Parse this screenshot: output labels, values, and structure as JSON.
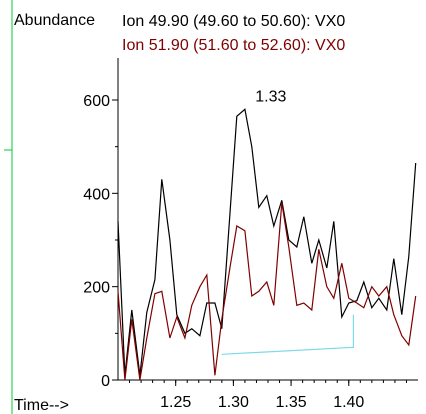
{
  "chart_data": {
    "type": "line",
    "ylabel": "Abundance",
    "xlabel": "Time-->",
    "xlim": [
      1.2,
      1.46
    ],
    "ylim": [
      0,
      690
    ],
    "xticks": [
      1.25,
      1.3,
      1.35,
      1.4
    ],
    "xtick_labels": [
      "1.25",
      "1.30",
      "1.35",
      "1.40"
    ],
    "yticks": [
      0,
      200,
      400,
      600
    ],
    "ytick_labels": [
      "0",
      "200",
      "400",
      "600"
    ],
    "grid": false,
    "legend": "top",
    "series": [
      {
        "name": "Ion  49.90 (49.60 to 50.60): VX0",
        "color": "#000000",
        "x": [
          1.2,
          1.206,
          1.212,
          1.219,
          1.225,
          1.232,
          1.238,
          1.245,
          1.251,
          1.258,
          1.264,
          1.271,
          1.277,
          1.284,
          1.29,
          1.297,
          1.303,
          1.31,
          1.316,
          1.322,
          1.329,
          1.335,
          1.342,
          1.348,
          1.355,
          1.361,
          1.368,
          1.374,
          1.381,
          1.387,
          1.394,
          1.4,
          1.407,
          1.413,
          1.42,
          1.426,
          1.433,
          1.439,
          1.446,
          1.452,
          1.458
        ],
        "values": [
          340,
          10,
          150,
          10,
          145,
          215,
          430,
          300,
          140,
          100,
          110,
          95,
          165,
          165,
          110,
          355,
          565,
          580,
          500,
          370,
          395,
          330,
          385,
          300,
          285,
          350,
          250,
          300,
          240,
          340,
          135,
          165,
          170,
          210,
          155,
          175,
          150,
          260,
          140,
          265,
          465
        ],
        "annotation": {
          "text": "1.33",
          "x": 1.329,
          "y": 580
        }
      },
      {
        "name": "Ion  51.90 (51.60 to 52.60): VX0",
        "color": "#800000",
        "x": [
          1.2,
          1.206,
          1.212,
          1.219,
          1.225,
          1.232,
          1.238,
          1.245,
          1.251,
          1.258,
          1.264,
          1.271,
          1.277,
          1.284,
          1.29,
          1.297,
          1.303,
          1.31,
          1.316,
          1.322,
          1.329,
          1.335,
          1.342,
          1.348,
          1.355,
          1.361,
          1.368,
          1.374,
          1.381,
          1.387,
          1.394,
          1.4,
          1.407,
          1.413,
          1.42,
          1.426,
          1.433,
          1.439,
          1.446,
          1.452,
          1.458
        ],
        "values": [
          190,
          0,
          130,
          0,
          90,
          185,
          190,
          90,
          135,
          90,
          160,
          200,
          225,
          10,
          130,
          240,
          330,
          320,
          180,
          190,
          210,
          160,
          380,
          285,
          160,
          165,
          150,
          280,
          200,
          175,
          250,
          175,
          165,
          155,
          200,
          180,
          200,
          140,
          95,
          75,
          180
        ]
      },
      {
        "name": "",
        "color": "#7fd9e6",
        "x": [
          1.29,
          1.404,
          1.404
        ],
        "values": [
          55,
          70,
          140
        ]
      }
    ]
  }
}
